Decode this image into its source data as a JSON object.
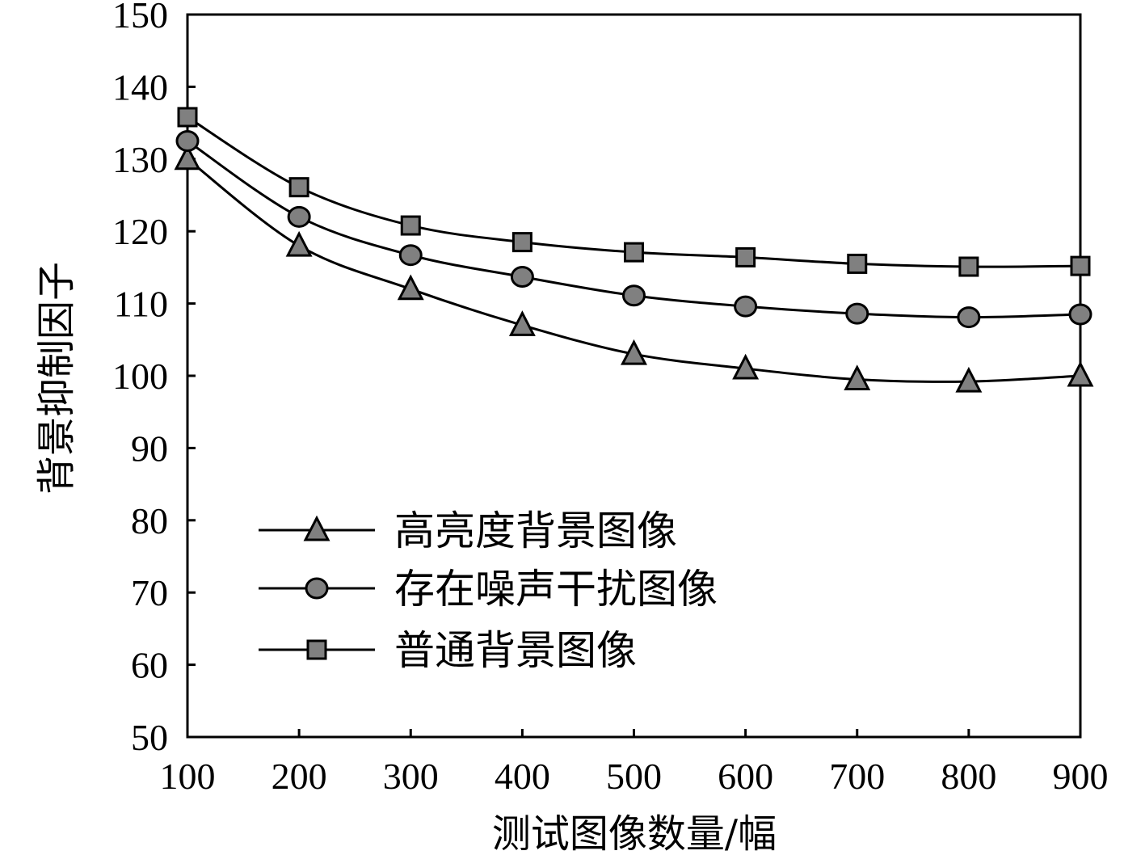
{
  "chart_data": {
    "type": "line",
    "title": "",
    "xlabel": "测试图像数量/幅",
    "ylabel": "背景抑制因子",
    "x": [
      100,
      200,
      300,
      400,
      500,
      600,
      700,
      800,
      900
    ],
    "x_tick_labels": [
      "100",
      "200",
      "300",
      "400",
      "500",
      "600",
      "700",
      "800",
      "900"
    ],
    "xlim": [
      100,
      900
    ],
    "ylim": [
      50,
      150
    ],
    "y_ticks": [
      50,
      60,
      70,
      80,
      90,
      100,
      110,
      120,
      130,
      140,
      150
    ],
    "y_tick_labels": [
      "50",
      "60",
      "70",
      "80",
      "90",
      "100",
      "110",
      "120",
      "130",
      "140",
      "150"
    ],
    "grid": false,
    "legend_position": "bottom-left",
    "marker_fill": "#808080",
    "series": [
      {
        "name": "高亮度背景图像",
        "marker": "triangle",
        "values": [
          130,
          118,
          112,
          107,
          103,
          101,
          99.5,
          99.2,
          100
        ]
      },
      {
        "name": "存在噪声干扰图像",
        "marker": "circle",
        "values": [
          132.5,
          122,
          116.7,
          113.7,
          111.1,
          109.6,
          108.6,
          108.1,
          108.5
        ]
      },
      {
        "name": "普通背景图像",
        "marker": "square",
        "values": [
          135.8,
          126.1,
          120.8,
          118.5,
          117.1,
          116.4,
          115.5,
          115.1,
          115.2
        ]
      }
    ]
  }
}
